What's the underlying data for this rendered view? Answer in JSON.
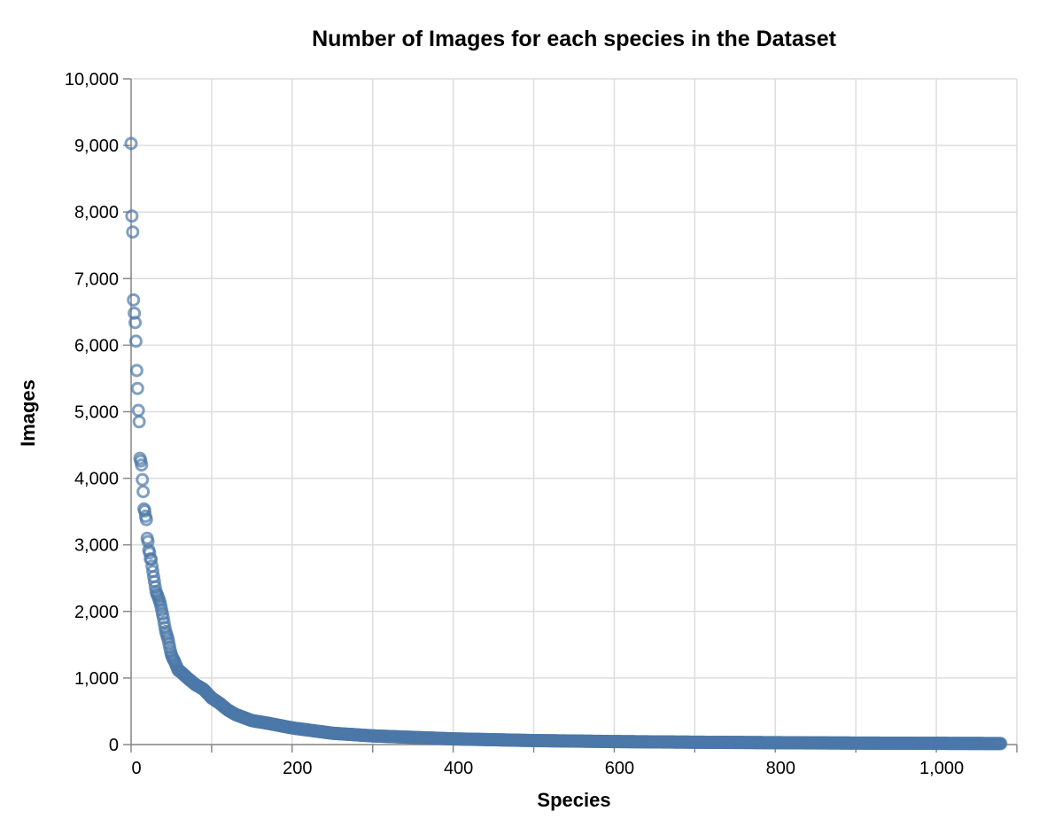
{
  "chart_data": {
    "type": "scatter",
    "title": "Number of Images for each species in the Dataset",
    "xlabel": "Species",
    "ylabel": "Images",
    "xlim": [
      0,
      1100
    ],
    "ylim": [
      0,
      10000
    ],
    "x_ticks": [
      {
        "value": 0,
        "label": "0"
      },
      {
        "value": 200,
        "label": "200"
      },
      {
        "value": 400,
        "label": "400"
      },
      {
        "value": 600,
        "label": "600"
      },
      {
        "value": 800,
        "label": "800"
      },
      {
        "value": 1000,
        "label": "1,000"
      }
    ],
    "y_ticks": [
      {
        "value": 0,
        "label": "0"
      },
      {
        "value": 1000,
        "label": "1,000"
      },
      {
        "value": 2000,
        "label": "2,000"
      },
      {
        "value": 3000,
        "label": "3,000"
      },
      {
        "value": 4000,
        "label": "4,000"
      },
      {
        "value": 5000,
        "label": "5,000"
      },
      {
        "value": 6000,
        "label": "6,000"
      },
      {
        "value": 7000,
        "label": "7,000"
      },
      {
        "value": 8000,
        "label": "8,000"
      },
      {
        "value": 9000,
        "label": "9,000"
      },
      {
        "value": 10000,
        "label": "10,000"
      }
    ],
    "grid": true,
    "marker": "hollow-circle",
    "color": "#4c78a8",
    "points_x_range": [
      0,
      1080
    ],
    "head_values": [
      9030,
      7940,
      7700,
      6680,
      6480,
      6340,
      6060,
      5620,
      5350,
      5020,
      4850,
      4300,
      4260,
      4200,
      3980,
      3800,
      3540,
      3510,
      3430,
      3380,
      3100,
      3050,
      2920,
      2880,
      2790,
      2780,
      2680,
      2600,
      2520,
      2450,
      2370,
      2300,
      2260,
      2240,
      2200,
      2170,
      2130,
      2080,
      2020,
      1960,
      1900,
      1830,
      1760,
      1700,
      1660,
      1620,
      1580,
      1520,
      1460,
      1400,
      1350,
      1320,
      1290,
      1270,
      1250,
      1220,
      1190,
      1160,
      1130,
      1110
    ],
    "tail_knots": [
      {
        "x": 60,
        "y": 1110
      },
      {
        "x": 70,
        "y": 1000
      },
      {
        "x": 80,
        "y": 900
      },
      {
        "x": 90,
        "y": 830
      },
      {
        "x": 100,
        "y": 700
      },
      {
        "x": 110,
        "y": 620
      },
      {
        "x": 120,
        "y": 520
      },
      {
        "x": 130,
        "y": 450
      },
      {
        "x": 150,
        "y": 360
      },
      {
        "x": 170,
        "y": 320
      },
      {
        "x": 200,
        "y": 250
      },
      {
        "x": 250,
        "y": 170
      },
      {
        "x": 300,
        "y": 130
      },
      {
        "x": 400,
        "y": 85
      },
      {
        "x": 500,
        "y": 60
      },
      {
        "x": 600,
        "y": 45
      },
      {
        "x": 700,
        "y": 35
      },
      {
        "x": 800,
        "y": 28
      },
      {
        "x": 900,
        "y": 22
      },
      {
        "x": 1000,
        "y": 18
      },
      {
        "x": 1080,
        "y": 15
      }
    ]
  }
}
